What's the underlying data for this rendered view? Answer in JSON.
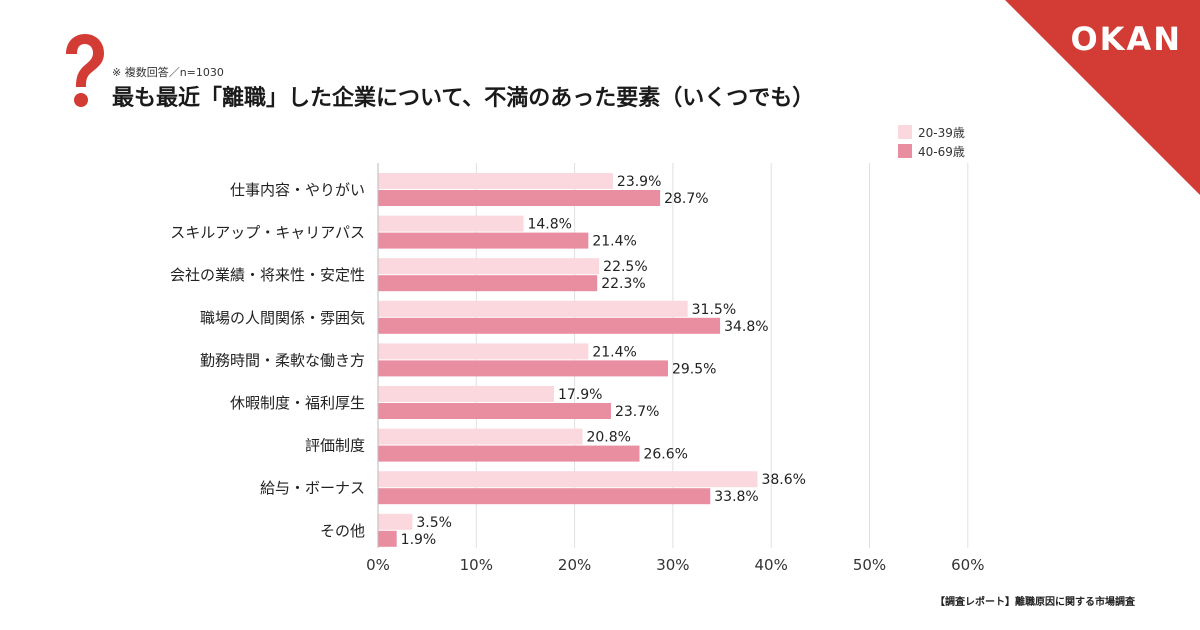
{
  "brand": {
    "logo": "OKAN",
    "accent": "#d23c35"
  },
  "header": {
    "note": "※ 複数回答／n=1030",
    "title": "最も最近「離職」した企業について、不満のあった要素（いくつでも）"
  },
  "footer": {
    "source": "【調査レポート】離職原因に関する市場調査"
  },
  "chart_data": {
    "type": "bar",
    "orientation": "horizontal",
    "categories": [
      "仕事内容・やりがい",
      "スキルアップ・キャリアパス",
      "会社の業績・将来性・安定性",
      "職場の人間関係・雰囲気",
      "勤務時間・柔軟な働き方",
      "休暇制度・福利厚生",
      "評価制度",
      "給与・ボーナス",
      "その他"
    ],
    "series": [
      {
        "name": "20-39歳",
        "color": "#fbd7de",
        "values": [
          23.9,
          14.8,
          22.5,
          31.5,
          21.4,
          17.9,
          20.8,
          38.6,
          3.5
        ]
      },
      {
        "name": "40-69歳",
        "color": "#e98da0",
        "values": [
          28.7,
          21.4,
          22.3,
          34.8,
          29.5,
          23.7,
          26.6,
          33.8,
          1.9
        ]
      }
    ],
    "xlim": [
      0,
      60
    ],
    "xticks": [
      0,
      10,
      20,
      30,
      40,
      50,
      60
    ],
    "tick_suffix": "%",
    "grid": true,
    "legend": "top-right"
  }
}
